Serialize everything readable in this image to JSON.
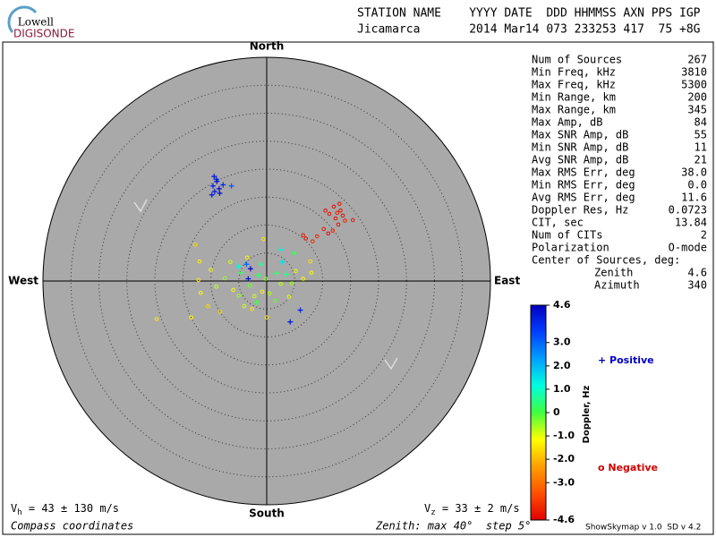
{
  "logo": {
    "top": "Lowell",
    "bottom": "DIGISONDE"
  },
  "header": {
    "line1": "STATION NAME    YYYY DATE  DDD HHMMSS AXN PPS IGP",
    "line2": "Jicamarca       2014 Mar14 073 233253 417  75 +8G"
  },
  "compass": {
    "north": "North",
    "south": "South",
    "east": "East",
    "west": "West"
  },
  "stats": [
    [
      "Num of Sources",
      "267"
    ],
    [
      "Min Freq, kHz",
      "3810"
    ],
    [
      "Max Freq, kHz",
      "5300"
    ],
    [
      "Min Range, km",
      "200"
    ],
    [
      "Max Range, km",
      "345"
    ],
    [
      "Max Amp, dB",
      "84"
    ],
    [
      "Max SNR Amp, dB",
      "55"
    ],
    [
      "Min SNR Amp, dB",
      "11"
    ],
    [
      "Avg SNR Amp, dB",
      "21"
    ],
    [
      "Max RMS Err, deg",
      "38.0"
    ],
    [
      "Min RMS Err, deg",
      "0.0"
    ],
    [
      "Avg RMS Err, deg",
      "11.6"
    ],
    [
      "Doppler Res, Hz",
      "0.0723"
    ],
    [
      "CIT, sec",
      "13.84"
    ],
    [
      "Num of CITs",
      "2"
    ],
    [
      "Polarization",
      "O-mode"
    ]
  ],
  "center": {
    "title": "Center of Sources, deg:",
    "rows": [
      [
        "Zenith",
        "4.6"
      ],
      [
        "Azimuth",
        "340"
      ]
    ]
  },
  "legend": {
    "positive": "+ Positive",
    "negative": "o Negative"
  },
  "footer": {
    "vh_symbol": "V",
    "vh_sub": "h",
    "vh_text": " = 43 ± 130 m/s",
    "vz_symbol": "V",
    "vz_sub": "z",
    "vz_text": " = 33 ± 2 m/s",
    "coords": "Compass coordinates",
    "zenith": "Zenith: max 40°  step 5°",
    "version": "ShowSkymap v 1.0  SD v 4.2"
  },
  "chart_data": {
    "type": "skymap",
    "colorbar_label": "Doppler, Hz",
    "rlim": [
      0,
      40
    ],
    "rticks": [
      5,
      10,
      15,
      20,
      25,
      30,
      35
    ],
    "clim": [
      -4.6,
      4.6
    ],
    "colorscale": [
      "#e00000",
      "#ff5000",
      "#ffa000",
      "#ffff00",
      "#40ff40",
      "#00ffe0",
      "#00a0ff",
      "#0040ff",
      "#0000c0"
    ],
    "cticks": [
      4.6,
      {
        "value": 3.0,
        "label": "3.0"
      },
      {
        "value": 2.0,
        "label": "2.0"
      },
      {
        "value": 1.0,
        "label": "1.0"
      },
      0,
      {
        "value": -1.0,
        "label": "-1.0"
      },
      {
        "value": -2.0,
        "label": "-2.0"
      },
      {
        "value": -3.0,
        "label": "-3.0"
      },
      -4.6
    ],
    "x": [
      10.5,
      11.2,
      12.0,
      12.6,
      13.0,
      12.3,
      13.6,
      11.8,
      10.2,
      9.0,
      7.0,
      6.5,
      8.2,
      12.8,
      14.0,
      15.4,
      11.0,
      13.2,
      -9.4,
      -8.9,
      -9.6,
      -8.5,
      -9.3,
      -8.4,
      -9.0,
      -7.8,
      -6.3,
      -9.8,
      -2.9,
      -3.3,
      6.0,
      4.2,
      -3.6,
      2.8,
      -5.0,
      -12.0,
      -10.0,
      -12.2,
      -11.8,
      -10.5,
      -9.0,
      -7.5,
      -6.0,
      -5.0,
      -4.6,
      -3.0,
      -2.2,
      -1.5,
      -0.8,
      -0.2,
      0.5,
      -1.0,
      -0.6,
      1.8,
      2.5,
      3.5,
      4.5,
      5.2,
      6.5,
      8.0,
      7.8,
      5.0,
      2.6,
      -3.5,
      -6.5,
      -13.5,
      -19.7,
      -8.3,
      -4.0,
      0.0,
      -12.8,
      -1.8,
      1.5,
      4.0,
      -2.6
    ],
    "y": [
      12.6,
      12.0,
      13.3,
      12.2,
      13.8,
      11.2,
      11.7,
      9.0,
      9.3,
      8.0,
      7.6,
      8.2,
      7.1,
      10.1,
      10.8,
      10.9,
      8.5,
      12.6,
      18.7,
      17.8,
      17.0,
      16.5,
      16.0,
      15.7,
      18.2,
      17.2,
      17.0,
      15.4,
      2.2,
      0.4,
      -5.2,
      -7.3,
      3.0,
      3.4,
      2.6,
      3.5,
      2.0,
      0.2,
      -2.1,
      -4.5,
      -1.0,
      0.5,
      -1.6,
      -2.6,
      1.5,
      -0.8,
      -2.7,
      1.0,
      -1.9,
      0.4,
      -2.2,
      3.0,
      7.5,
      1.4,
      -0.5,
      1.2,
      -0.4,
      1.8,
      0.4,
      1.5,
      3.5,
      5.0,
      5.6,
      4.2,
      3.4,
      -6.5,
      -6.8,
      -5.5,
      -4.5,
      -6.5,
      6.5,
      -3.8,
      -3.5,
      -2.8,
      -5.0
    ],
    "values": [
      -4.4,
      -4.3,
      -4.5,
      -4.2,
      -4.4,
      -4.3,
      -4.5,
      -4.1,
      -4.3,
      -4.2,
      -4.4,
      -4.3,
      -4.0,
      -4.4,
      -4.2,
      -4.3,
      -4.5,
      -4.4,
      4.2,
      4.3,
      4.1,
      4.4,
      4.2,
      4.3,
      4.0,
      3.9,
      3.2,
      4.2,
      4.5,
      4.3,
      4.0,
      4.2,
      3.0,
      1.5,
      1.2,
      -1.3,
      -1.0,
      -1.5,
      -1.2,
      -1.6,
      -0.8,
      -0.5,
      -1.1,
      -0.6,
      0.2,
      -0.3,
      -0.9,
      0.4,
      -1.3,
      -0.4,
      -0.7,
      0.6,
      -1.4,
      0.3,
      -0.8,
      0.5,
      -0.6,
      -1.0,
      -1.2,
      -1.1,
      -1.5,
      0.2,
      1.3,
      -1.3,
      -0.9,
      -1.2,
      -1.4,
      -1.7,
      -0.9,
      -1.3,
      -1.6,
      0.1,
      -0.2,
      -1.0,
      -1.4
    ]
  }
}
